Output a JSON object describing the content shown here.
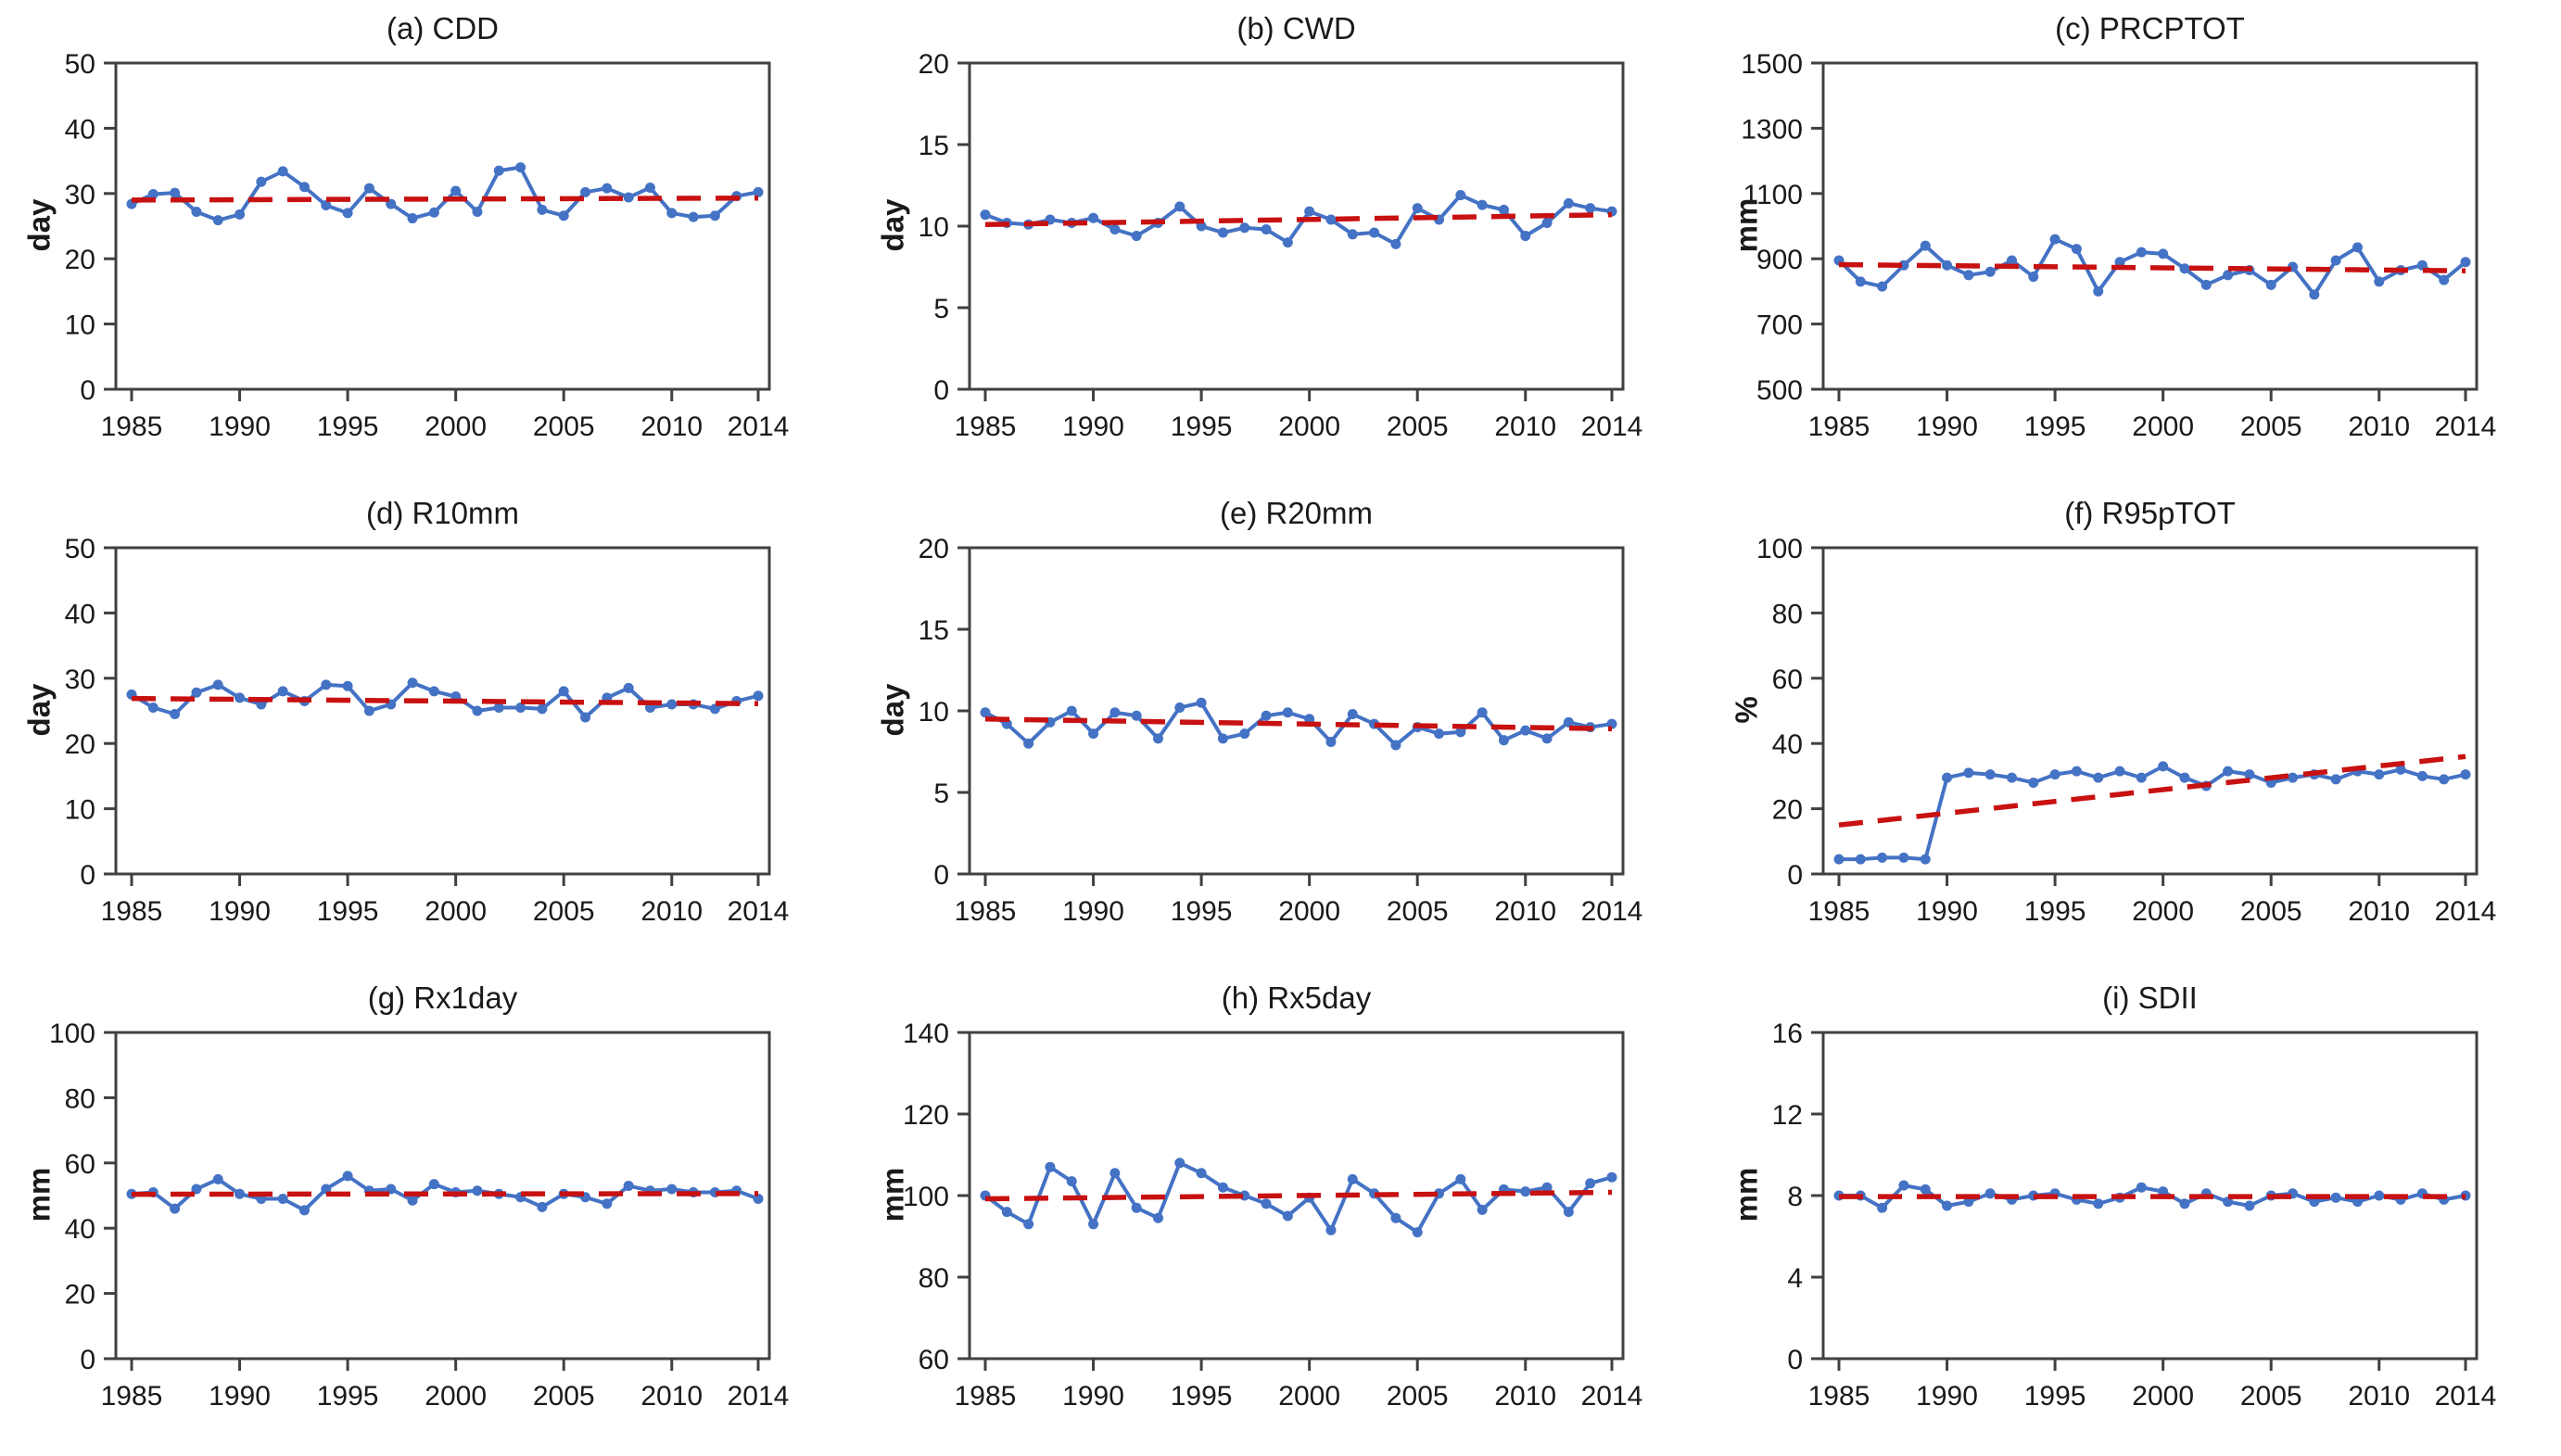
{
  "figure": {
    "background": "#ffffff",
    "series_color": "#4472C4",
    "trend_color": "#C81111",
    "axis_color": "#404040",
    "x_start": 1985,
    "x_end": 2014,
    "x_tick_years": [
      1985,
      1990,
      1995,
      2000,
      2005,
      2010,
      2014
    ]
  },
  "chart_data": [
    {
      "type": "line",
      "id": "cdd",
      "title": "(a) CDD",
      "ylabel": "day",
      "ylim": [
        0,
        50
      ],
      "yticks": [
        0,
        10,
        20,
        30,
        40,
        50
      ],
      "x": "years 1985-2014",
      "grid": false,
      "legend": "none",
      "values": [
        28.4,
        29.9,
        30.1,
        27.2,
        25.9,
        26.8,
        31.8,
        33.4,
        31.0,
        28.2,
        27.0,
        30.8,
        28.4,
        26.2,
        27.1,
        30.4,
        27.2,
        33.5,
        34.0,
        27.5,
        26.6,
        30.2,
        30.8,
        29.4,
        30.9,
        27.0,
        26.4,
        26.6,
        29.6,
        30.2
      ],
      "trend": {
        "start": 29.0,
        "end": 29.3
      }
    },
    {
      "type": "line",
      "id": "cwd",
      "title": "(b) CWD",
      "ylabel": "day",
      "ylim": [
        0,
        20
      ],
      "yticks": [
        0,
        5,
        10,
        15,
        20
      ],
      "x": "years 1985-2014",
      "grid": false,
      "legend": "none",
      "values": [
        10.7,
        10.2,
        10.1,
        10.4,
        10.2,
        10.5,
        9.8,
        9.4,
        10.2,
        11.2,
        10.0,
        9.6,
        9.9,
        9.8,
        9.0,
        10.9,
        10.4,
        9.5,
        9.6,
        8.9,
        11.1,
        10.4,
        11.9,
        11.3,
        11.0,
        9.4,
        10.2,
        11.4,
        11.1,
        10.9
      ],
      "trend": {
        "start": 10.1,
        "end": 10.7
      }
    },
    {
      "type": "line",
      "id": "prcptot",
      "title": "(c) PRCPTOT",
      "ylabel": "mm",
      "ylim": [
        500,
        1500
      ],
      "yticks": [
        500,
        700,
        900,
        1100,
        1300,
        1500
      ],
      "x": "years 1985-2014",
      "grid": false,
      "legend": "none",
      "values": [
        895,
        830,
        815,
        880,
        940,
        880,
        850,
        860,
        895,
        845,
        960,
        930,
        800,
        890,
        920,
        915,
        870,
        820,
        850,
        865,
        820,
        875,
        790,
        895,
        935,
        830,
        865,
        880,
        835,
        890
      ],
      "trend": {
        "start": 882,
        "end": 863
      }
    },
    {
      "type": "line",
      "id": "r10mm",
      "title": "(d) R10mm",
      "ylabel": "day",
      "ylim": [
        0,
        50
      ],
      "yticks": [
        0,
        10,
        20,
        30,
        40,
        50
      ],
      "x": "years 1985-2014",
      "grid": false,
      "legend": "none",
      "values": [
        27.5,
        25.5,
        24.5,
        27.8,
        29.0,
        27.0,
        26.0,
        28.0,
        26.5,
        29.0,
        28.8,
        25.0,
        26.0,
        29.3,
        28.0,
        27.2,
        25.0,
        25.5,
        25.5,
        25.3,
        28.0,
        24.0,
        27.0,
        28.5,
        25.5,
        26.0,
        26.0,
        25.3,
        26.5,
        27.3
      ],
      "trend": {
        "start": 26.9,
        "end": 26.1
      }
    },
    {
      "type": "line",
      "id": "r20mm",
      "title": "(e) R20mm",
      "ylabel": "day",
      "ylim": [
        0,
        20
      ],
      "yticks": [
        0,
        5,
        10,
        15,
        20
      ],
      "x": "years 1985-2014",
      "grid": false,
      "legend": "none",
      "values": [
        9.9,
        9.2,
        8.0,
        9.3,
        10.0,
        8.6,
        9.9,
        9.7,
        8.3,
        10.2,
        10.5,
        8.3,
        8.6,
        9.7,
        9.9,
        9.5,
        8.1,
        9.8,
        9.2,
        7.9,
        9.0,
        8.6,
        8.7,
        9.9,
        8.2,
        8.8,
        8.3,
        9.3,
        9.0,
        9.2
      ],
      "trend": {
        "start": 9.5,
        "end": 8.9
      }
    },
    {
      "type": "line",
      "id": "r95ptot",
      "title": "(f) R95pTOT",
      "ylabel": "%",
      "ylim": [
        0,
        100
      ],
      "yticks": [
        0,
        20,
        40,
        60,
        80,
        100
      ],
      "x": "years 1985-2014",
      "grid": false,
      "legend": "none",
      "values": [
        4.5,
        4.5,
        5.0,
        5.0,
        4.5,
        29.5,
        31.0,
        30.5,
        29.5,
        28.0,
        30.5,
        31.5,
        29.5,
        31.5,
        29.5,
        33.0,
        29.5,
        27.0,
        31.5,
        30.5,
        28.0,
        29.5,
        30.5,
        29.0,
        31.5,
        30.5,
        32.0,
        30.0,
        29.0,
        30.5
      ],
      "trend": {
        "start": 15.0,
        "end": 36.0
      }
    },
    {
      "type": "line",
      "id": "rx1day",
      "title": "(g) Rx1day",
      "ylabel": "mm",
      "ylim": [
        0,
        100
      ],
      "yticks": [
        0,
        20,
        40,
        60,
        80,
        100
      ],
      "x": "years 1985-2014",
      "grid": false,
      "legend": "none",
      "values": [
        50.5,
        51.0,
        46.0,
        52.0,
        55.0,
        50.5,
        49.0,
        49.0,
        45.5,
        52.0,
        56.0,
        51.5,
        52.0,
        48.5,
        53.5,
        51.0,
        51.5,
        50.5,
        49.5,
        46.5,
        50.5,
        49.5,
        47.5,
        53.0,
        51.5,
        52.0,
        51.0,
        51.0,
        51.5,
        49.0
      ],
      "trend": {
        "start": 50.4,
        "end": 50.6
      }
    },
    {
      "type": "line",
      "id": "rx5day",
      "title": "(h) Rx5day",
      "ylabel": "mm",
      "ylim": [
        60,
        140
      ],
      "yticks": [
        60,
        80,
        100,
        120,
        140
      ],
      "x": "years 1985-2014",
      "grid": false,
      "legend": "none",
      "values": [
        100,
        96,
        93,
        107,
        103.5,
        93,
        105.5,
        97,
        94.5,
        108,
        105.5,
        102,
        100,
        98,
        95,
        99.5,
        91.5,
        104,
        100.5,
        94.5,
        91,
        100.5,
        104,
        96.5,
        101.5,
        101,
        102,
        96,
        103,
        104.5
      ],
      "trend": {
        "start": 99.2,
        "end": 100.8
      }
    },
    {
      "type": "line",
      "id": "sdii",
      "title": "(i) SDII",
      "ylabel": "mm",
      "ylim": [
        0,
        16
      ],
      "yticks": [
        0,
        4,
        8,
        12,
        16
      ],
      "x": "years 1985-2014",
      "grid": false,
      "legend": "none",
      "values": [
        8.0,
        8.0,
        7.4,
        8.5,
        8.3,
        7.5,
        7.7,
        8.1,
        7.8,
        8.0,
        8.1,
        7.8,
        7.6,
        7.9,
        8.4,
        8.2,
        7.6,
        8.1,
        7.7,
        7.5,
        8.0,
        8.1,
        7.7,
        7.9,
        7.7,
        8.0,
        7.8,
        8.1,
        7.8,
        8.0
      ],
      "trend": {
        "start": 7.95,
        "end": 7.95
      }
    }
  ]
}
